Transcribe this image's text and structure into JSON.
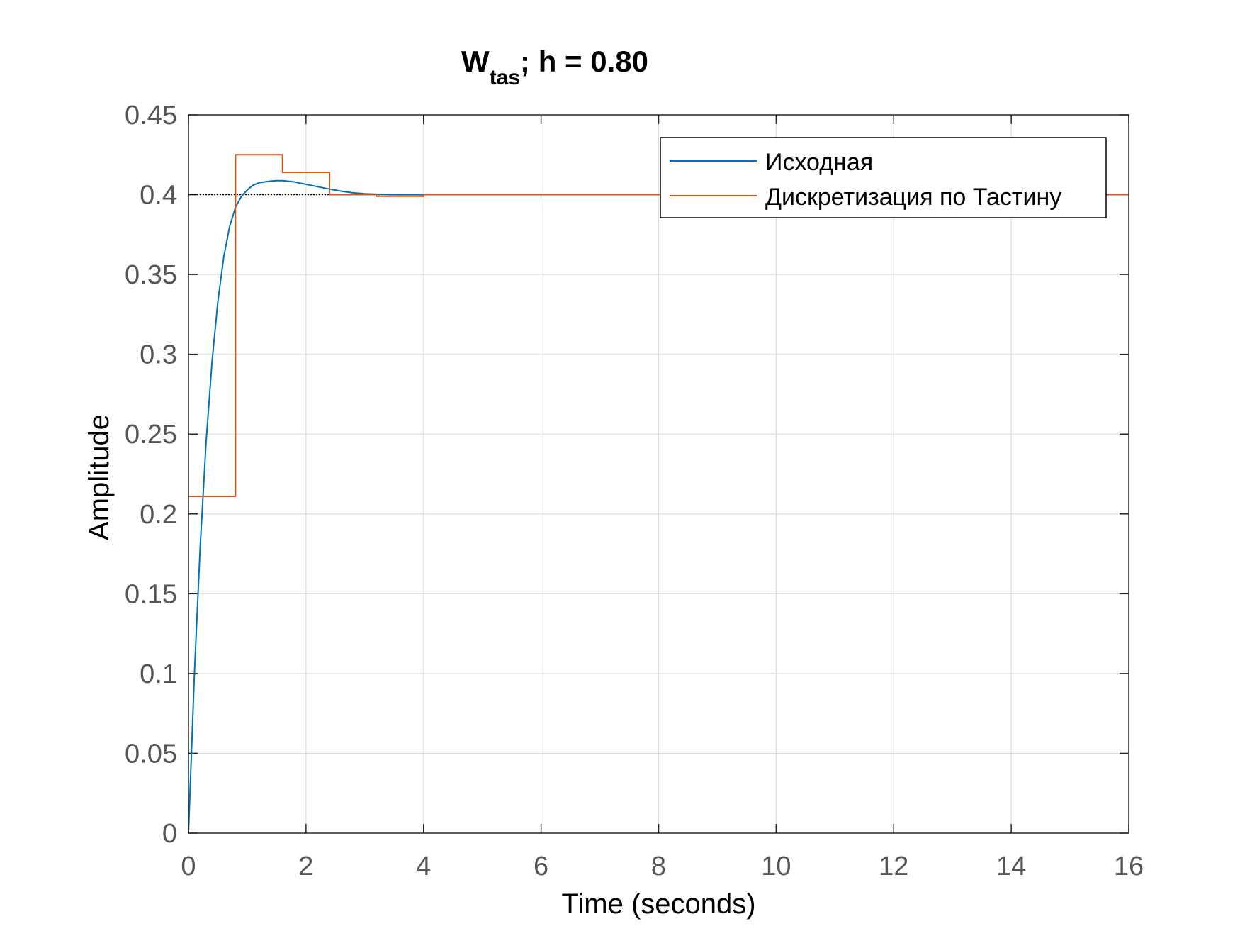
{
  "chart_data": {
    "type": "line",
    "title": {
      "main": "W",
      "subscript": "tas",
      "rest": "; h = 0.80"
    },
    "xlabel": "Time (seconds)",
    "ylabel": "Amplitude",
    "xlim": [
      0,
      16
    ],
    "ylim": [
      0,
      0.45
    ],
    "xticks": [
      0,
      2,
      4,
      6,
      8,
      10,
      12,
      14,
      16
    ],
    "xtick_labels": [
      "0",
      "2",
      "4",
      "6",
      "8",
      "10",
      "12",
      "14",
      "16"
    ],
    "yticks": [
      0,
      0.05,
      0.1,
      0.15,
      0.2,
      0.25,
      0.3,
      0.35,
      0.4,
      0.45
    ],
    "ytick_labels": [
      "0",
      "0.05",
      "0.1",
      "0.15",
      "0.2",
      "0.25",
      "0.3",
      "0.35",
      "0.4",
      "0.45"
    ],
    "grid": true,
    "legend_position": "top-right",
    "reference_line": {
      "y": 0.4,
      "x_range": [
        0,
        4
      ],
      "style": "dotted",
      "color": "#000000"
    },
    "series": [
      {
        "name": "Исходная",
        "style": "continuous",
        "color": "#0072BD",
        "x": [
          0,
          0.1,
          0.2,
          0.3,
          0.4,
          0.5,
          0.6,
          0.7,
          0.8,
          0.9,
          1.0,
          1.1,
          1.2,
          1.3,
          1.4,
          1.5,
          1.6,
          1.8,
          2.0,
          2.2,
          2.4,
          2.6,
          2.8,
          3.0,
          3.2,
          3.4,
          3.6,
          3.8,
          4.0
        ],
        "y": [
          0,
          0.099,
          0.18,
          0.245,
          0.295,
          0.333,
          0.361,
          0.38,
          0.392,
          0.399,
          0.403,
          0.406,
          0.4075,
          0.408,
          0.4085,
          0.4088,
          0.4088,
          0.408,
          0.4065,
          0.405,
          0.4035,
          0.4022,
          0.4012,
          0.4006,
          0.4003,
          0.4001,
          0.4,
          0.4,
          0.4
        ]
      },
      {
        "name": "Дискретизация по Тастину",
        "style": "stairs",
        "color": "#D95319",
        "x": [
          0,
          0.8,
          1.6,
          2.4,
          3.2,
          4.0,
          16
        ],
        "y": [
          0.211,
          0.425,
          0.414,
          0.4,
          0.399,
          0.4,
          0.4
        ]
      }
    ]
  }
}
